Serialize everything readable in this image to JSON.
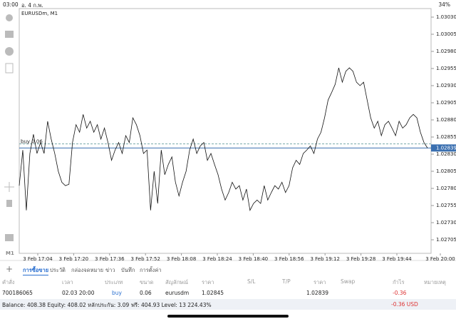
{
  "status_bar": {
    "time": "03:00",
    "date": "อ. 4 ก.พ.",
    "battery": "34%"
  },
  "side_label": "M1",
  "chart_data": {
    "type": "line",
    "title": "EURUSDm, M1",
    "series": [
      {
        "name": "EURUSDm",
        "color": "#111111",
        "values": [
          1.02784,
          1.02836,
          1.02748,
          1.02831,
          1.02859,
          1.02831,
          1.02847,
          1.02831,
          1.02878,
          1.02852,
          1.02831,
          1.02805,
          1.02789,
          1.02784,
          1.02786,
          1.02847,
          1.02873,
          1.02862,
          1.02888,
          1.02868,
          1.02878,
          1.02862,
          1.02873,
          1.02852,
          1.02868,
          1.02847,
          1.02821,
          1.02836,
          1.02847,
          1.02831,
          1.02857,
          1.02847,
          1.02883,
          1.02873,
          1.02857,
          1.02831,
          1.02836,
          1.02748,
          1.02805,
          1.02758,
          1.02836,
          1.028,
          1.02815,
          1.02826,
          1.02789,
          1.02769,
          1.02789,
          1.02805,
          1.02836,
          1.02852,
          1.02831,
          1.02842,
          1.02847,
          1.02821,
          1.02831,
          1.02815,
          1.028,
          1.02779,
          1.02763,
          1.02774,
          1.02789,
          1.02779,
          1.02784,
          1.02763,
          1.02779,
          1.02748,
          1.02758,
          1.02763,
          1.02758,
          1.02784,
          1.02763,
          1.02774,
          1.02784,
          1.02779,
          1.02789,
          1.02774,
          1.02784,
          1.0281,
          1.02821,
          1.02815,
          1.02831,
          1.02836,
          1.02842,
          1.02831,
          1.02852,
          1.02862,
          1.02883,
          1.02909,
          1.0292,
          1.02932,
          1.02956,
          1.02935,
          1.02951,
          1.02956,
          1.02951,
          1.02935,
          1.0293,
          1.02935,
          1.02909,
          1.02883,
          1.02868,
          1.02878,
          1.02857,
          1.02873,
          1.02878,
          1.02868,
          1.02857,
          1.02878,
          1.02868,
          1.02873,
          1.02883,
          1.02888,
          1.02883,
          1.02862,
          1.02847,
          1.02839
        ]
      }
    ],
    "ylim": [
      1.026852,
      1.030425
    ],
    "yticks": [
      {
        "value": 1.0303,
        "label": "1.03030"
      },
      {
        "value": 1.03005,
        "label": "1.03005"
      },
      {
        "value": 1.0298,
        "label": "1.02980"
      },
      {
        "value": 1.02955,
        "label": "1.02955"
      },
      {
        "value": 1.0293,
        "label": "1.02930"
      },
      {
        "value": 1.02905,
        "label": "1.02905"
      },
      {
        "value": 1.0288,
        "label": "1.02880"
      },
      {
        "value": 1.02855,
        "label": "1.02855"
      },
      {
        "value": 1.0283,
        "label": "1.02830"
      },
      {
        "value": 1.02805,
        "label": "1.02805"
      },
      {
        "value": 1.0278,
        "label": "1.02780"
      },
      {
        "value": 1.02755,
        "label": "1.02755"
      },
      {
        "value": 1.0273,
        "label": "1.02730"
      },
      {
        "value": 1.02705,
        "label": "1.02705"
      }
    ],
    "xtick_labels": [
      "3 Feb 17:04",
      "3 Feb 17:20",
      "3 Feb 17:36",
      "3 Feb 17:52",
      "3 Feb 18:08",
      "3 Feb 18:24",
      "3 Feb 18:40",
      "3 Feb 18:56",
      "3 Feb 19:12",
      "3 Feb 19:28",
      "3 Feb 19:44",
      "3 Feb 20:00"
    ],
    "position_line": {
      "label": "buy 0.06",
      "value": 1.02845
    },
    "current_price": {
      "value": 1.02839,
      "label": "1.02839"
    }
  },
  "tabs": [
    "การซื้อขาย",
    "ประวัติ",
    "กล่องจดหมาย",
    "ข่าว",
    "บันทึก",
    "การตั้งค่า"
  ],
  "table": {
    "header": [
      "คำสั่ง",
      "เวลา",
      "ประเภท",
      "ขนาด",
      "สัญลักษณ์",
      "ราคา",
      "S/L",
      "T/P",
      "ราคา",
      "Swap",
      "กำไร",
      "หมายเหตุ"
    ],
    "rows": [
      [
        "700186065",
        "02.03 20:00",
        "buy",
        "0.06",
        "eurusdm",
        "1.02845",
        "",
        "",
        "1.02839",
        "",
        "-0.36",
        ""
      ]
    ]
  },
  "footer": {
    "summary": "Balance: 408.38 Equity: 408.02 หลักประกัน: 3.09 ฟรี: 404.93 Level: 13 224.43%",
    "profit": "-0.36 USD"
  }
}
